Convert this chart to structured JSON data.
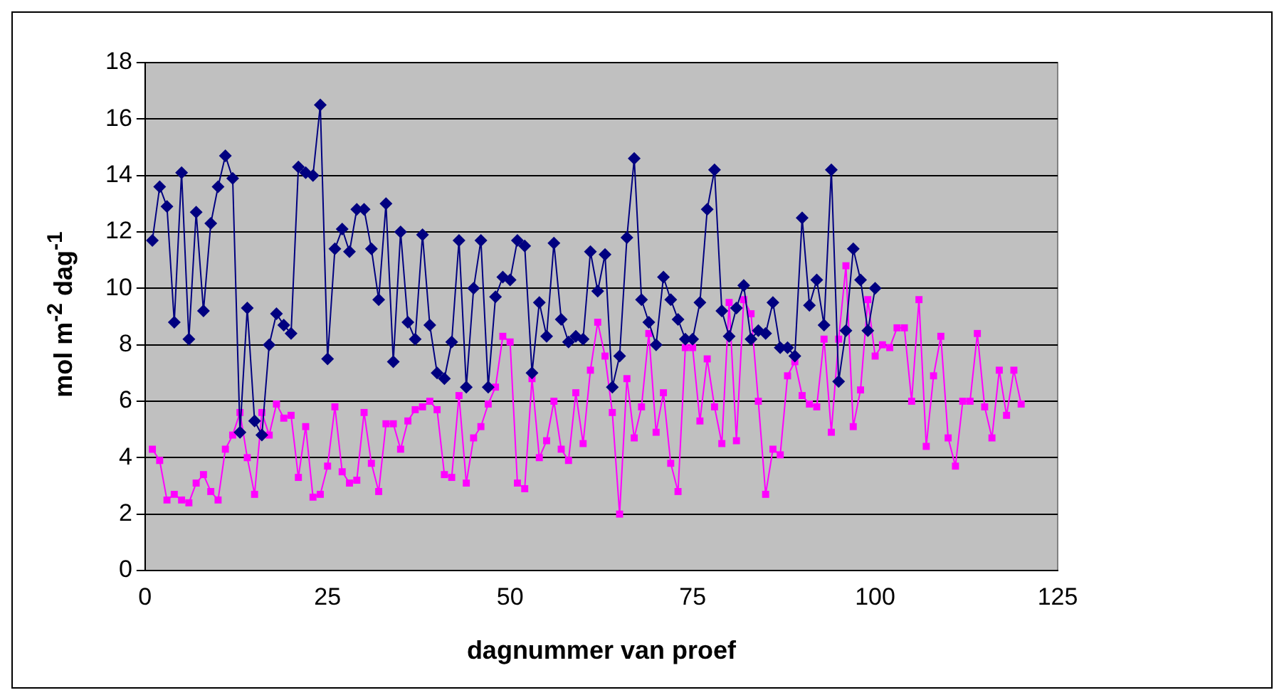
{
  "chart_data": {
    "type": "line",
    "xlabel": "dagnummer van proef",
    "ylabel": "mol m$^{-2}$ dag$^{-1}$",
    "xlim": [
      0,
      125
    ],
    "xticks": [
      0,
      25,
      50,
      75,
      100,
      125
    ],
    "ylim": [
      0,
      18
    ],
    "yticks": [
      0,
      2,
      4,
      6,
      8,
      10,
      12,
      14,
      16,
      18
    ],
    "grid": "y",
    "legend": false,
    "series": [
      {
        "color": "#000080",
        "marker": "diamond",
        "x": [
          1,
          2,
          3,
          4,
          5,
          6,
          7,
          8,
          9,
          10,
          11,
          12,
          13,
          14,
          15,
          16,
          17,
          18,
          19,
          20,
          21,
          22,
          23,
          24,
          25,
          26,
          27,
          28,
          29,
          30,
          31,
          32,
          33,
          34,
          35,
          36,
          37,
          38,
          39,
          40,
          41,
          42,
          43,
          44,
          45,
          46,
          47,
          48,
          49,
          50,
          51,
          52,
          53,
          54,
          55,
          56,
          57,
          58,
          59,
          60,
          61,
          62,
          63,
          64,
          65,
          66,
          67,
          68,
          69,
          70,
          71,
          72,
          73,
          74,
          75,
          76,
          77,
          78,
          79,
          80,
          81,
          82,
          83,
          84,
          85,
          86,
          87,
          88,
          89,
          90,
          91,
          92,
          93,
          94,
          95,
          96,
          97,
          98,
          99,
          100
        ],
        "values": [
          11.7,
          13.6,
          12.9,
          8.8,
          14.1,
          8.2,
          12.7,
          9.2,
          12.3,
          13.6,
          14.7,
          13.9,
          4.9,
          9.3,
          5.3,
          4.8,
          8.0,
          9.1,
          8.7,
          8.4,
          14.3,
          14.1,
          14.0,
          16.5,
          7.5,
          11.4,
          12.1,
          11.3,
          12.8,
          12.8,
          11.4,
          9.6,
          13.0,
          7.4,
          12.0,
          8.8,
          8.2,
          11.9,
          8.7,
          7.0,
          6.8,
          8.1,
          11.7,
          6.5,
          10.0,
          11.7,
          6.5,
          9.7,
          10.4,
          10.3,
          11.7,
          11.5,
          7.0,
          9.5,
          8.3,
          11.6,
          8.9,
          8.1,
          8.3,
          8.2,
          11.3,
          9.9,
          11.2,
          6.5,
          7.6,
          11.8,
          14.6,
          9.6,
          8.8,
          8.0,
          10.4,
          9.6,
          8.9,
          8.2,
          8.2,
          9.5,
          12.8,
          14.2,
          9.2,
          8.3,
          9.3,
          10.1,
          8.2,
          8.5,
          8.4,
          9.5,
          7.9,
          7.9,
          7.6,
          12.5,
          9.4,
          10.3,
          8.7,
          14.2,
          6.7,
          8.5,
          11.4,
          10.3,
          8.5,
          10.0
        ]
      },
      {
        "color": "#ff00ff",
        "marker": "square",
        "x": [
          1,
          2,
          3,
          4,
          5,
          6,
          7,
          8,
          9,
          10,
          11,
          12,
          13,
          14,
          15,
          16,
          17,
          18,
          19,
          20,
          21,
          22,
          23,
          24,
          25,
          26,
          27,
          28,
          29,
          30,
          31,
          32,
          33,
          34,
          35,
          36,
          37,
          38,
          39,
          40,
          41,
          42,
          43,
          44,
          45,
          46,
          47,
          48,
          49,
          50,
          51,
          52,
          53,
          54,
          55,
          56,
          57,
          58,
          59,
          60,
          61,
          62,
          63,
          64,
          65,
          66,
          67,
          68,
          69,
          70,
          71,
          72,
          73,
          74,
          75,
          76,
          77,
          78,
          79,
          80,
          81,
          82,
          83,
          84,
          85,
          86,
          87,
          88,
          89,
          90,
          91,
          92,
          93,
          94,
          95,
          96,
          97,
          98,
          99,
          100,
          101,
          102,
          103,
          104,
          105,
          106,
          107,
          108,
          109,
          110,
          111,
          112,
          113,
          114,
          115,
          116,
          117,
          118,
          119,
          120
        ],
        "values": [
          4.3,
          3.9,
          2.5,
          2.7,
          2.5,
          2.4,
          3.1,
          3.4,
          2.8,
          2.5,
          4.3,
          4.8,
          5.6,
          4.0,
          2.7,
          5.6,
          4.8,
          5.9,
          5.4,
          5.5,
          3.3,
          5.1,
          2.6,
          2.7,
          3.7,
          5.8,
          3.5,
          3.1,
          3.2,
          5.6,
          3.8,
          2.8,
          5.2,
          5.2,
          4.3,
          5.3,
          5.7,
          5.8,
          6.0,
          5.7,
          3.4,
          3.3,
          6.2,
          3.1,
          4.7,
          5.1,
          5.9,
          6.5,
          8.3,
          8.1,
          3.1,
          2.9,
          6.8,
          4.0,
          4.6,
          6.0,
          4.3,
          3.9,
          6.3,
          4.5,
          7.1,
          8.8,
          7.6,
          5.6,
          2.0,
          6.8,
          4.7,
          5.8,
          8.4,
          4.9,
          6.3,
          3.8,
          2.8,
          7.9,
          7.9,
          5.3,
          7.5,
          5.8,
          4.5,
          9.5,
          4.6,
          9.6,
          9.1,
          6.0,
          2.7,
          4.3,
          4.1,
          6.9,
          7.4,
          6.2,
          5.9,
          5.8,
          8.2,
          4.9,
          8.2,
          10.8,
          5.1,
          6.4,
          9.6,
          7.6,
          8.0,
          7.9,
          8.6,
          8.6,
          6.0,
          9.6,
          4.4,
          6.9,
          8.3,
          4.7,
          3.7,
          6.0,
          6.0,
          8.4,
          5.8,
          4.7,
          7.1,
          5.5,
          7.1,
          5.9
        ]
      }
    ]
  }
}
